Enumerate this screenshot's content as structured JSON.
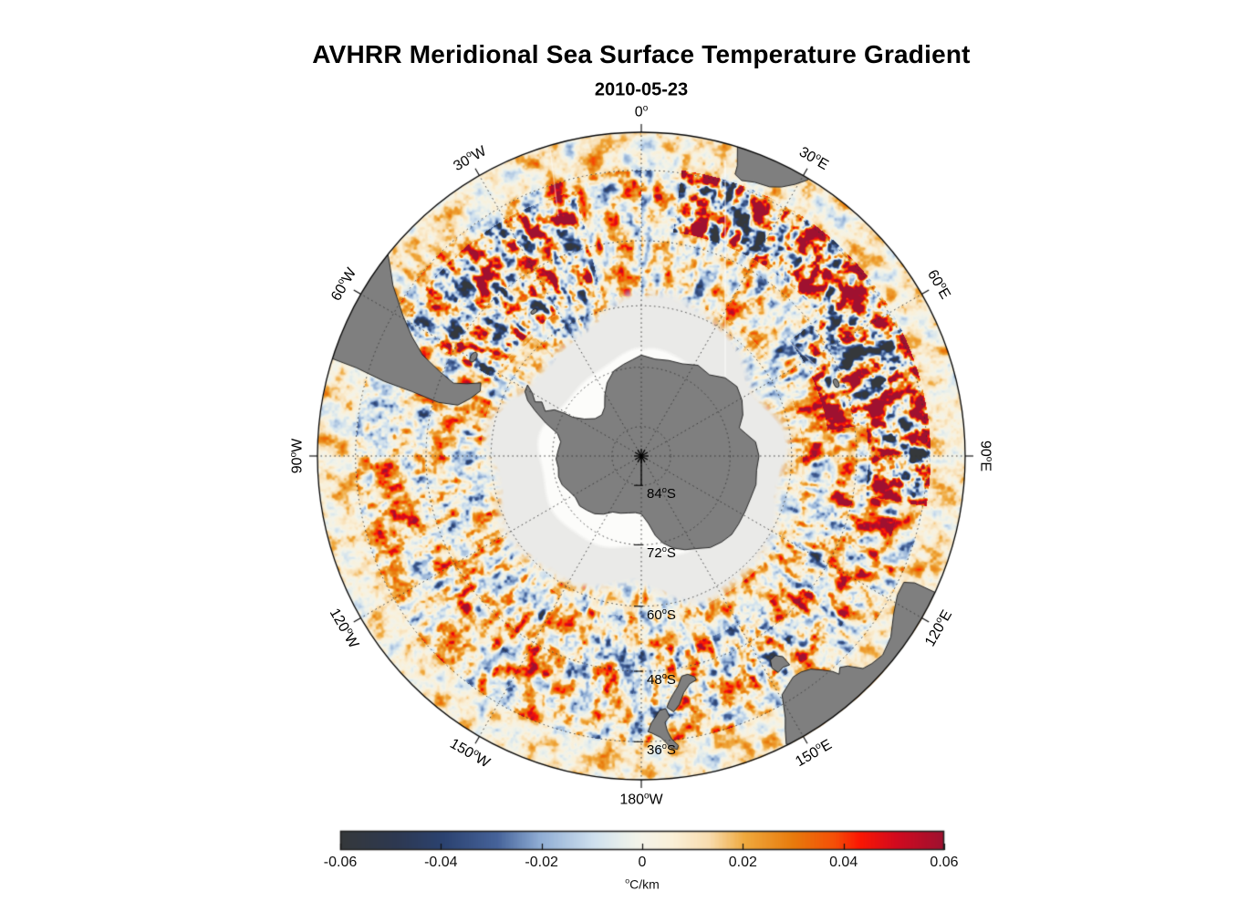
{
  "chart_data": {
    "type": "heatmap",
    "title": "AVHRR Meridional Sea Surface Temperature Gradient",
    "subtitle": "2010-05-23",
    "projection": "south polar stereographic",
    "outer_latitude": -30,
    "pole_latitude": -90,
    "meridians": [
      {
        "az": 0,
        "label": "0°"
      },
      {
        "az": 30,
        "label": "30°E"
      },
      {
        "az": 60,
        "label": "60°E"
      },
      {
        "az": 90,
        "label": "90°E"
      },
      {
        "az": 120,
        "label": "120°E"
      },
      {
        "az": 150,
        "label": "150°E"
      },
      {
        "az": 180,
        "label": "180°W"
      },
      {
        "az": 210,
        "label": "150°W"
      },
      {
        "az": 240,
        "label": "120°W"
      },
      {
        "az": 270,
        "label": "90°W"
      },
      {
        "az": 300,
        "label": "60°W"
      },
      {
        "az": 330,
        "label": "30°W"
      }
    ],
    "parallels": [
      {
        "lat": -84,
        "label": "84°S"
      },
      {
        "lat": -72,
        "label": "72°S"
      },
      {
        "lat": -60,
        "label": "60°S"
      },
      {
        "lat": -48,
        "label": "48°S"
      },
      {
        "lat": -36,
        "label": "36°S"
      }
    ],
    "colorbar": {
      "min": -0.06,
      "max": 0.06,
      "unit": "°C/km",
      "ticks": [
        {
          "value": -0.06,
          "label": "-0.06"
        },
        {
          "value": -0.04,
          "label": "-0.04"
        },
        {
          "value": -0.02,
          "label": "-0.02"
        },
        {
          "value": 0,
          "label": "0"
        },
        {
          "value": 0.02,
          "label": "0.02"
        },
        {
          "value": 0.04,
          "label": "0.04"
        },
        {
          "value": 0.06,
          "label": "0.06"
        }
      ],
      "stops": [
        [
          0.0,
          "#35383b"
        ],
        [
          0.09,
          "#2d3850"
        ],
        [
          0.17,
          "#2b4270"
        ],
        [
          0.26,
          "#46639a"
        ],
        [
          0.33,
          "#8fadd4"
        ],
        [
          0.42,
          "#cfe0ee"
        ],
        [
          0.47,
          "#e8efeb"
        ],
        [
          0.5,
          "#f4f3e8"
        ],
        [
          0.55,
          "#faf0d8"
        ],
        [
          0.61,
          "#f8ddb0"
        ],
        [
          0.67,
          "#efa93e"
        ],
        [
          0.75,
          "#e87b0c"
        ],
        [
          0.82,
          "#f54e07"
        ],
        [
          0.86,
          "#fb1703"
        ],
        [
          0.92,
          "#d30a1e"
        ],
        [
          1.0,
          "#9e1130"
        ]
      ]
    },
    "colors": {
      "land": "#7f7f7f",
      "coast_outline": "#1a1a1a",
      "sea_ice": "#eaeae8",
      "ice_shelf": "#fcfcfa",
      "graticule": "#333333",
      "map_outline": "#000000",
      "background": "#ffffff"
    },
    "enhanced_gradient_regions": [
      {
        "name": "agulhas-return-current",
        "az": [
          8,
          100
        ],
        "lat": [
          -46,
          -35.5
        ],
        "amp": 0.85,
        "bias": 0.09
      },
      {
        "name": "agulhas-meander-south",
        "az": [
          52,
          82
        ],
        "lat": [
          -53,
          -46
        ],
        "amp": 0.8,
        "bias": 0.08
      },
      {
        "name": "southwest-atlantic",
        "az": [
          298,
          346
        ],
        "lat": [
          -57,
          -38
        ],
        "amp": 0.72,
        "bias": 0.07
      },
      {
        "name": "south-indian-band",
        "az": [
          100,
          178
        ],
        "lat": [
          -52,
          -40
        ],
        "amp": 0.52,
        "bias": 0.06
      },
      {
        "name": "south-pacific-band",
        "az": [
          182,
          260
        ],
        "lat": [
          -58,
          -44
        ],
        "amp": 0.46,
        "bias": 0.05
      },
      {
        "name": "weddell-margin-blues",
        "az": [
          318,
          352
        ],
        "lat": [
          -64,
          -57
        ],
        "amp": 0.5,
        "bias": 0.01
      },
      {
        "name": "east-coastal-blues",
        "az": [
          20,
          42
        ],
        "lat": [
          -68,
          -61
        ],
        "amp": 0.65,
        "bias": -0.05
      }
    ],
    "land": {
      "antarctica": [
        [
          0,
          -69.6
        ],
        [
          8,
          -70.2
        ],
        [
          16,
          -69.9
        ],
        [
          24,
          -69.6
        ],
        [
          32,
          -68.4
        ],
        [
          40,
          -68.6
        ],
        [
          47,
          -66.9
        ],
        [
          54,
          -66.2
        ],
        [
          61,
          -66.8
        ],
        [
          68,
          -67.9
        ],
        [
          74,
          -69.4
        ],
        [
          78,
          -68.4
        ],
        [
          83,
          -66.8
        ],
        [
          90,
          -66.3
        ],
        [
          97,
          -66.6
        ],
        [
          104,
          -66.2
        ],
        [
          111,
          -66.4
        ],
        [
          118,
          -66.3
        ],
        [
          125,
          -66.1
        ],
        [
          131,
          -65.9
        ],
        [
          137,
          -66.3
        ],
        [
          143,
          -66.9
        ],
        [
          149,
          -68.2
        ],
        [
          155,
          -69.1
        ],
        [
          161,
          -70.3
        ],
        [
          166,
          -71.8
        ],
        [
          170,
          -73.6
        ],
        [
          174,
          -76.2
        ],
        [
          180,
          -78.2
        ],
        [
          -174,
          -78.4
        ],
        [
          -167,
          -78.1
        ],
        [
          -160,
          -77.6
        ],
        [
          -153,
          -77.2
        ],
        [
          -147,
          -75.9
        ],
        [
          -141,
          -74.9
        ],
        [
          -135,
          -74.4
        ],
        [
          -129,
          -73.9
        ],
        [
          -122,
          -74.2
        ],
        [
          -116,
          -73.7
        ],
        [
          -110,
          -72.9
        ],
        [
          -104,
          -72.7
        ],
        [
          -98,
          -73
        ],
        [
          -92,
          -72.7
        ],
        [
          -86,
          -73.1
        ],
        [
          -80,
          -73.4
        ],
        [
          -75,
          -72.4
        ],
        [
          -71,
          -69.6
        ],
        [
          -67,
          -66.8
        ],
        [
          -64,
          -64.6
        ],
        [
          -61,
          -63.3
        ],
        [
          -58,
          -63.1
        ],
        [
          -60,
          -64.7
        ],
        [
          -63,
          -66
        ],
        [
          -61.5,
          -67.2
        ],
        [
          -65,
          -68.6
        ],
        [
          -62,
          -70.1
        ],
        [
          -61,
          -72
        ],
        [
          -60.5,
          -74
        ],
        [
          -57,
          -76.2
        ],
        [
          -51,
          -77.9
        ],
        [
          -44,
          -78.4
        ],
        [
          -37,
          -77.6
        ],
        [
          -31,
          -75.6
        ],
        [
          -25,
          -73.6
        ],
        [
          -18,
          -71.9
        ],
        [
          -11,
          -71.1
        ],
        [
          -5,
          -70.4
        ]
      ],
      "south_america": [
        [
          -72.5,
          -29.8
        ],
        [
          -72.8,
          -34
        ],
        [
          -73.8,
          -39
        ],
        [
          -74.3,
          -44
        ],
        [
          -75.2,
          -49
        ],
        [
          -74.5,
          -52.5
        ],
        [
          -71.5,
          -54.3
        ],
        [
          -68,
          -55.6
        ],
        [
          -65.5,
          -55.1
        ],
        [
          -67.5,
          -52.8
        ],
        [
          -68.8,
          -50.5
        ],
        [
          -67.3,
          -47.5
        ],
        [
          -65.2,
          -43.5
        ],
        [
          -62.5,
          -40.5
        ],
        [
          -59.5,
          -37.5
        ],
        [
          -55.5,
          -33.5
        ],
        [
          -52.5,
          -31
        ],
        [
          -51,
          -29.5
        ],
        [
          -55,
          -29.2
        ],
        [
          -60,
          -29.1
        ],
        [
          -65,
          -29.1
        ],
        [
          -70,
          -29.3
        ]
      ],
      "africa": [
        [
          17.2,
          -29.8
        ],
        [
          17.8,
          -31.5
        ],
        [
          18.3,
          -32.8
        ],
        [
          18.4,
          -34.2
        ],
        [
          20,
          -34.8
        ],
        [
          22.5,
          -34.3
        ],
        [
          25.5,
          -34
        ],
        [
          27.5,
          -33.2
        ],
        [
          29.5,
          -31.8
        ],
        [
          31,
          -30.3
        ],
        [
          31.5,
          -29.5
        ],
        [
          24,
          -29.1
        ],
        [
          19,
          -29.3
        ]
      ],
      "australia": [
        [
          114.9,
          -29.8
        ],
        [
          114.9,
          -33.5
        ],
        [
          115.7,
          -35.1
        ],
        [
          118.5,
          -35.1
        ],
        [
          122,
          -34.1
        ],
        [
          126,
          -32.4
        ],
        [
          129.5,
          -31.7
        ],
        [
          132,
          -32.1
        ],
        [
          133.8,
          -32.6
        ],
        [
          135.5,
          -34.6
        ],
        [
          136.8,
          -35.3
        ],
        [
          137.8,
          -34.6
        ],
        [
          138.4,
          -35.6
        ],
        [
          139.8,
          -36.9
        ],
        [
          141.5,
          -38.2
        ],
        [
          143.5,
          -38.8
        ],
        [
          145.5,
          -38.9
        ],
        [
          147.5,
          -38.2
        ],
        [
          149.5,
          -37.4
        ],
        [
          150.3,
          -35.8
        ],
        [
          151.2,
          -33.9
        ],
        [
          152.3,
          -32.2
        ],
        [
          153.3,
          -30.2
        ],
        [
          152,
          -29.2
        ],
        [
          145,
          -29
        ],
        [
          135,
          -29
        ],
        [
          125,
          -29
        ],
        [
          118,
          -29.2
        ]
      ],
      "tasmania": [
        [
          144.6,
          -40.9
        ],
        [
          146.2,
          -41.2
        ],
        [
          147.7,
          -40.9
        ],
        [
          148.4,
          -42.1
        ],
        [
          147.7,
          -43.4
        ],
        [
          146.1,
          -43.6
        ],
        [
          144.8,
          -42.7
        ]
      ],
      "new_zealand_south": [
        [
          166.4,
          -45.9
        ],
        [
          168,
          -46.6
        ],
        [
          169.6,
          -46.5
        ],
        [
          171,
          -44.8
        ],
        [
          172.4,
          -43.6
        ],
        [
          173.5,
          -42.5
        ],
        [
          174.2,
          -41.5
        ],
        [
          172.8,
          -40.6
        ],
        [
          171.3,
          -41.7
        ],
        [
          169.8,
          -43.6
        ],
        [
          168,
          -44.9
        ],
        [
          166.2,
          -45.3
        ]
      ],
      "new_zealand_north": [
        [
          174.5,
          -41.3
        ],
        [
          175.9,
          -41.1
        ],
        [
          176.9,
          -40
        ],
        [
          177.9,
          -39
        ],
        [
          178.6,
          -37.6
        ],
        [
          177.9,
          -37.4
        ],
        [
          176.1,
          -36.6
        ],
        [
          175.2,
          -35.8
        ],
        [
          174.3,
          -34.8
        ],
        [
          173,
          -34.4
        ],
        [
          172.7,
          -35
        ],
        [
          173.9,
          -36.2
        ],
        [
          174.6,
          -37.6
        ],
        [
          174.9,
          -39
        ],
        [
          173.8,
          -39.9
        ]
      ]
    },
    "islands": [
      {
        "name": "falkland-islands",
        "lon": -59.5,
        "lat": -51.7,
        "size": 6
      },
      {
        "name": "south-georgia",
        "lon": -36.6,
        "lat": -54.4,
        "size": 4
      },
      {
        "name": "kerguelen",
        "lon": 69.5,
        "lat": -49.3,
        "size": 5
      }
    ]
  }
}
